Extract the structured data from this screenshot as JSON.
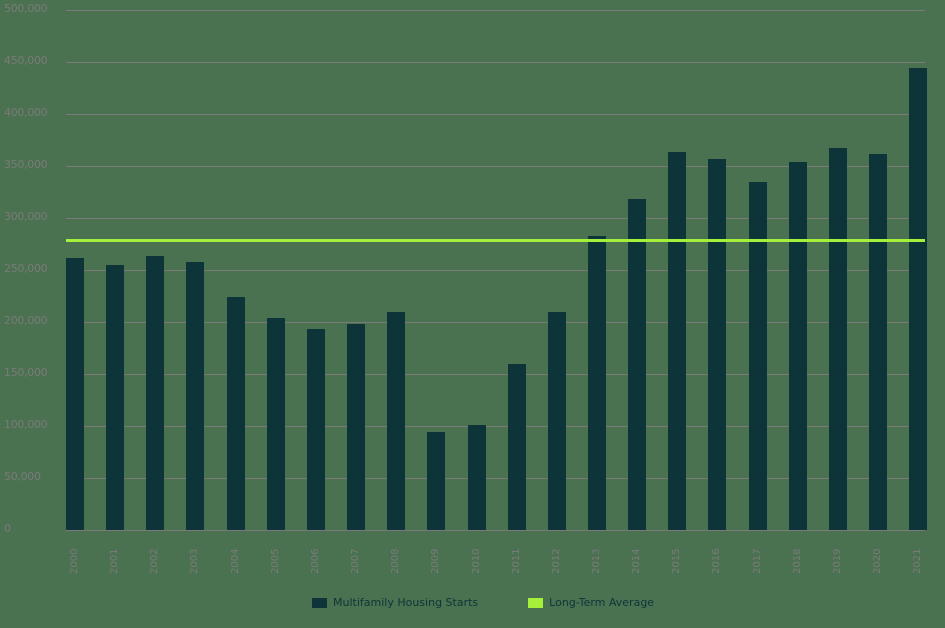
{
  "chart_data": {
    "type": "bar",
    "title": "",
    "xlabel": "",
    "ylabel": "",
    "ylim": [
      0,
      500000
    ],
    "yticks": [
      "500,000",
      "450,000",
      "400,000",
      "350,000",
      "300,000",
      "250,000",
      "200,000",
      "150,000",
      "100,000",
      "50,000",
      "0"
    ],
    "ytick_values": [
      500000,
      450000,
      400000,
      350000,
      300000,
      250000,
      200000,
      150000,
      100000,
      50000,
      0
    ],
    "categories": [
      "2000",
      "2001",
      "2002",
      "2003",
      "2004",
      "2005",
      "2006",
      "2007",
      "2008",
      "2009",
      "2010",
      "2011",
      "2012",
      "2013",
      "2014",
      "2015",
      "2016",
      "2017",
      "2018",
      "2019",
      "2020",
      "2021"
    ],
    "series": [
      {
        "name": "Multifamily Housing Starts",
        "type": "bar",
        "color": "#0d3539",
        "values": [
          261500,
          255000,
          263500,
          257700,
          224000,
          204000,
          193000,
          198000,
          209500,
          94000,
          101000,
          160000,
          209500,
          283000,
          318000,
          363500,
          357000,
          334500,
          354000,
          367000,
          361500,
          444000
        ]
      },
      {
        "name": "Long-Term Average",
        "type": "line",
        "color": "#a4f03a",
        "value": 279000
      }
    ],
    "grid": true,
    "legend_position": "bottom"
  },
  "legend": {
    "items": [
      {
        "label": "Multifamily Housing Starts",
        "color": "#0d3539"
      },
      {
        "label": "Long-Term Average",
        "color": "#a4f03a"
      }
    ]
  }
}
